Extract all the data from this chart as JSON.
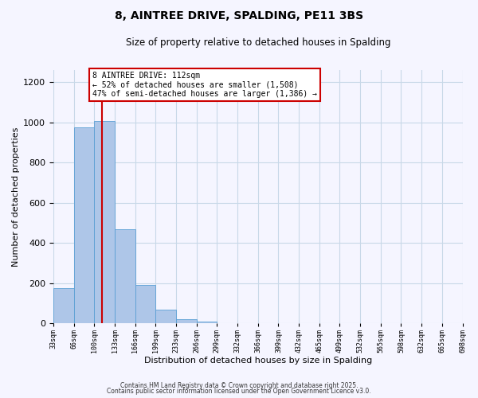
{
  "title": "8, AINTREE DRIVE, SPALDING, PE11 3BS",
  "subtitle": "Size of property relative to detached houses in Spalding",
  "xlabel": "Distribution of detached houses by size in Spalding",
  "ylabel": "Number of detached properties",
  "bar_values": [
    175,
    975,
    1005,
    470,
    193,
    70,
    22,
    10,
    0,
    0,
    0,
    0,
    0,
    0,
    0,
    0,
    0,
    0,
    0,
    0
  ],
  "bin_labels": [
    "33sqm",
    "66sqm",
    "100sqm",
    "133sqm",
    "166sqm",
    "199sqm",
    "233sqm",
    "266sqm",
    "299sqm",
    "332sqm",
    "366sqm",
    "399sqm",
    "432sqm",
    "465sqm",
    "499sqm",
    "532sqm",
    "565sqm",
    "598sqm",
    "632sqm",
    "665sqm",
    "698sqm"
  ],
  "bar_color": "#aec6e8",
  "bar_edge_color": "#5a9fd4",
  "property_line_bin_index": 2.36,
  "annotation_line1": "8 AINTREE DRIVE: 112sqm",
  "annotation_line2": "← 52% of detached houses are smaller (1,508)",
  "annotation_line3": "47% of semi-detached houses are larger (1,386) →",
  "annotation_box_color": "#ffffff",
  "annotation_box_edge_color": "#cc0000",
  "vline_color": "#cc0000",
  "ylim": [
    0,
    1260
  ],
  "yticks": [
    0,
    200,
    400,
    600,
    800,
    1000,
    1200
  ],
  "footer1": "Contains HM Land Registry data © Crown copyright and database right 2025.",
  "footer2": "Contains public sector information licensed under the Open Government Licence v3.0.",
  "bg_color": "#f5f5ff",
  "grid_color": "#c8d8e8"
}
